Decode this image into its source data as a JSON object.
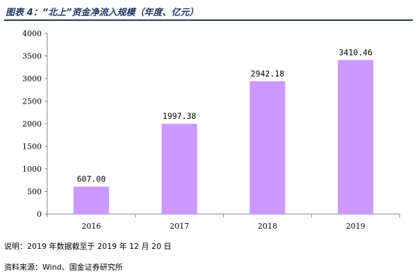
{
  "header": {
    "title": "图表 4：“北上”资金净流入规模（年度、亿元）"
  },
  "chart_data": {
    "type": "bar",
    "title": "图表 4：“北上”资金净流入规模（年度、亿元）",
    "xlabel": "",
    "ylabel": "",
    "categories": [
      "2016",
      "2017",
      "2018",
      "2019"
    ],
    "values": [
      607.0,
      1997.38,
      2942.18,
      3410.46
    ],
    "data_labels": [
      "607.00",
      "1997.38",
      "2942.18",
      "3410.46"
    ],
    "ylim": [
      0,
      4000
    ],
    "yticks": [
      0,
      500,
      1000,
      1500,
      2000,
      2500,
      3000,
      3500,
      4000
    ],
    "bar_color": "#cc99ff",
    "grid": false,
    "legend": "none"
  },
  "footer": {
    "note": "说明：2019 年数据截至于 2019 年 12 月 20 日",
    "source": "资料来源：Wind、国金证券研究所"
  }
}
